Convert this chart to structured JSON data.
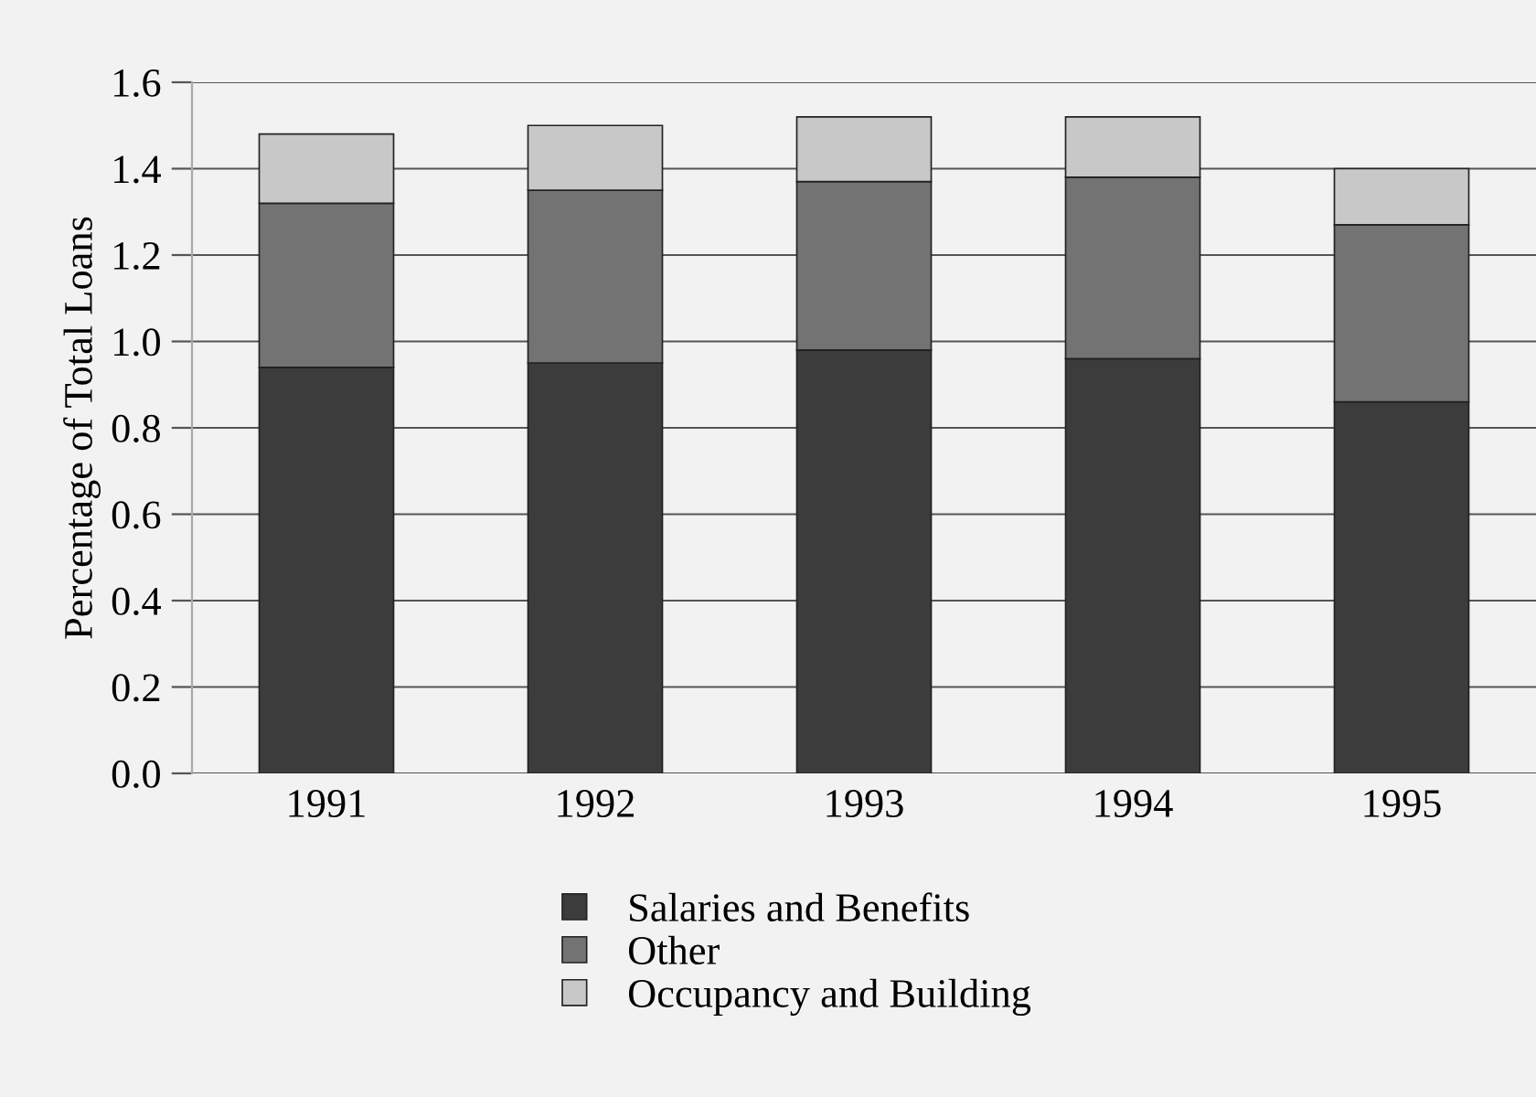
{
  "chart_data": {
    "type": "bar",
    "stacked": true,
    "ylabel": "Percentage of Total Loans",
    "categories": [
      "1991",
      "1992",
      "1993",
      "1994",
      "1995"
    ],
    "series": [
      {
        "name": "Salaries and Benefits",
        "color": "#3c3c3c",
        "values": [
          0.94,
          0.95,
          0.98,
          0.96,
          0.86
        ]
      },
      {
        "name": "Other",
        "color": "#737373",
        "values": [
          0.38,
          0.4,
          0.39,
          0.42,
          0.41
        ]
      },
      {
        "name": "Occupancy and Building",
        "color": "#c8c8c8",
        "values": [
          0.16,
          0.15,
          0.15,
          0.14,
          0.13
        ]
      }
    ],
    "ylim": [
      0,
      1.6
    ],
    "yticks": [
      {
        "value": 0,
        "label": "0.0"
      },
      0.2,
      0.4,
      0.6,
      0.8,
      {
        "value": 1,
        "label": "1.0"
      },
      1.2,
      1.4,
      1.6
    ],
    "grid": "y",
    "legend": "bottom"
  }
}
